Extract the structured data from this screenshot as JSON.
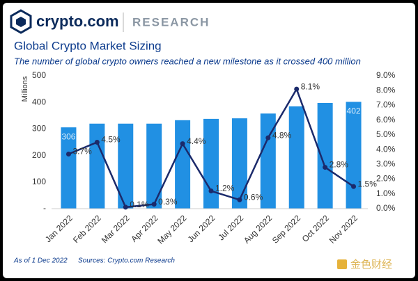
{
  "header": {
    "logo": "crypto.com",
    "section": "RESEARCH"
  },
  "chart_data": {
    "type": "combo",
    "title": "Global Crypto Market Sizing",
    "subtitle": "The number of global crypto owners reached a new milestone as it crossed 400 million",
    "y_label": "Millions",
    "categories": [
      "Jan 2022",
      "Feb 2022",
      "Mar 2022",
      "Apr 2022",
      "May 2022",
      "Jun 2022",
      "Jul 2022",
      "Aug 2022",
      "Sep 2022",
      "Oct 2022",
      "Nov 2022"
    ],
    "series": [
      {
        "type": "bar",
        "color": "#2190e3",
        "values": [
          306,
          320,
          320,
          320,
          333,
          338,
          340,
          358,
          385,
          398,
          402
        ],
        "value_labels": [
          "306",
          null,
          null,
          null,
          null,
          null,
          null,
          null,
          null,
          null,
          "402"
        ]
      },
      {
        "type": "line",
        "axis": "y2",
        "color": "#1b2a6b",
        "values": [
          3.7,
          4.5,
          0.1,
          0.3,
          4.4,
          1.2,
          0.6,
          4.8,
          8.1,
          2.8,
          1.5
        ],
        "value_labels": [
          "3.7%",
          "4.5%",
          "0.1%",
          "0.3%",
          "4.4%",
          "1.2%",
          "0.6%",
          "4.8%",
          "8.1%",
          "2.8%",
          "1.5%"
        ]
      }
    ],
    "ylim": [
      0,
      500
    ],
    "yticks": [
      {
        "value": 0,
        "label": "-"
      },
      100,
      200,
      300,
      400,
      500
    ],
    "y2lim": [
      0,
      9
    ],
    "y2ticks": [
      {
        "value": 0,
        "label": "0.0%"
      },
      {
        "value": 1,
        "label": "1.0%"
      },
      {
        "value": 2,
        "label": "2.0%"
      },
      {
        "value": 3,
        "label": "3.0%"
      },
      {
        "value": 4,
        "label": "4.0%"
      },
      {
        "value": 5,
        "label": "5.0%"
      },
      {
        "value": 6,
        "label": "6.0%"
      },
      {
        "value": 7,
        "label": "7.0%"
      },
      {
        "value": 8,
        "label": "8.0%"
      },
      {
        "value": 9,
        "label": "9.0%"
      }
    ],
    "grid": false
  },
  "footer": {
    "date": "As of 1 Dec 2022",
    "source": "Sources: Crypto.com Research"
  },
  "watermark": "金色财经"
}
